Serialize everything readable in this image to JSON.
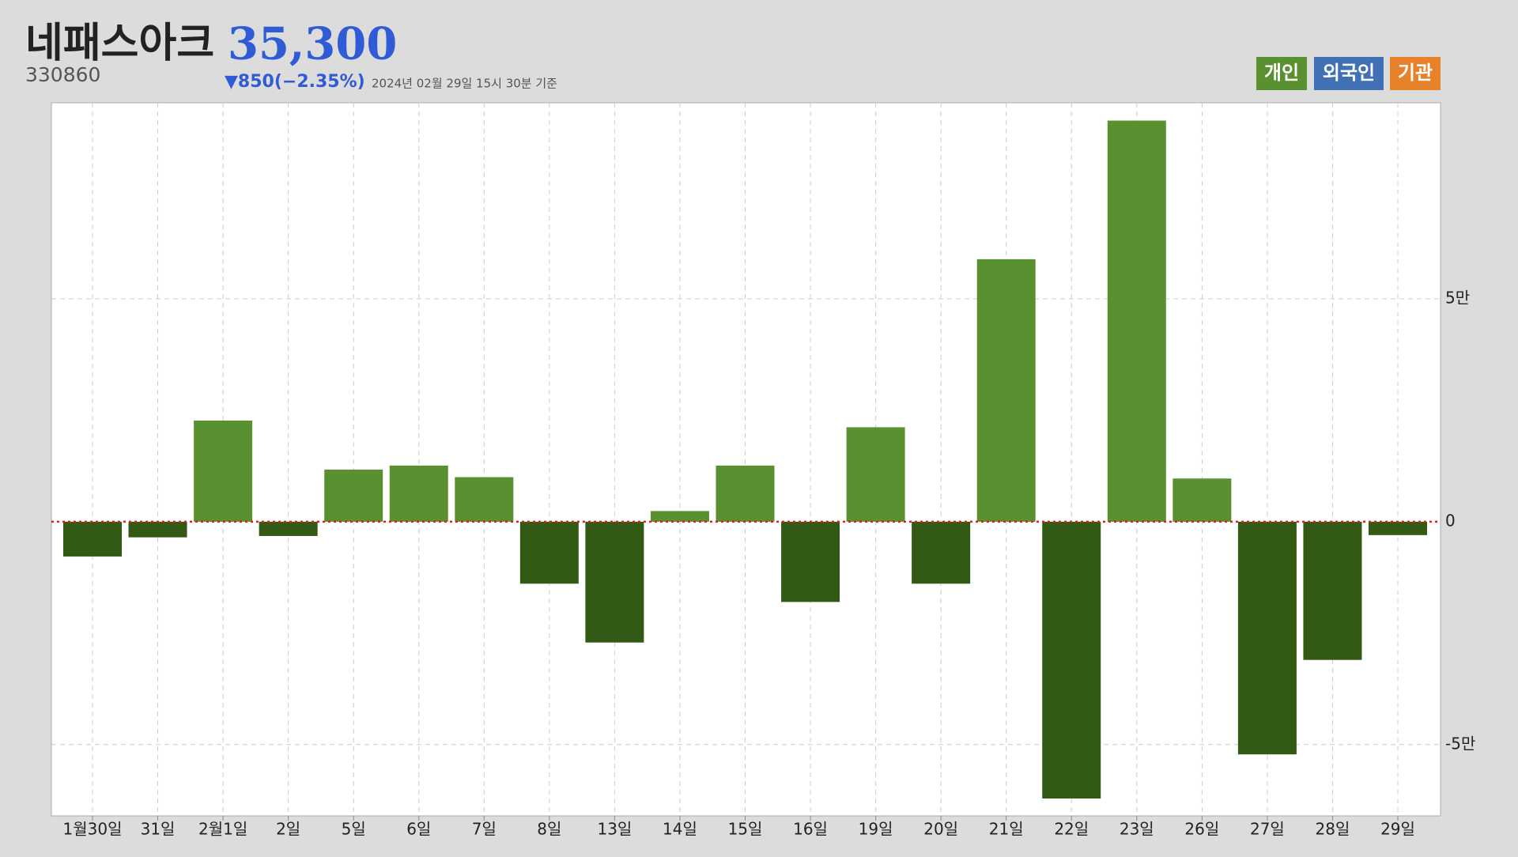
{
  "header": {
    "title": "네패스아크",
    "code": "330860",
    "price": "35,300",
    "change": "▼850(−2.35%)",
    "timestamp": "2024년 02월 29일 15시 30분 기준"
  },
  "legend": [
    {
      "label": "개인",
      "color": "#5a9130"
    },
    {
      "label": "외국인",
      "color": "#4170b4"
    },
    {
      "label": "기관",
      "color": "#e8822a"
    }
  ],
  "chart_data": {
    "type": "bar",
    "categories": [
      "1월30일",
      "31일",
      "2월1일",
      "2일",
      "5일",
      "6일",
      "7일",
      "8일",
      "13일",
      "14일",
      "15일",
      "16일",
      "19일",
      "20일",
      "21일",
      "22일",
      "23일",
      "26일",
      "27일",
      "28일",
      "29일"
    ],
    "values": [
      -7800,
      -3500,
      22700,
      -3200,
      11700,
      12600,
      10000,
      -13900,
      -27100,
      2400,
      12600,
      -18000,
      21200,
      -13900,
      58900,
      -62100,
      90000,
      9700,
      -52200,
      -31000,
      -3000
    ],
    "positive_color": "#5a9130",
    "negative_color": "#335a14",
    "ylim": [
      -66000,
      94000
    ],
    "yticks": [
      {
        "value": -50000,
        "label": "-5만"
      },
      0,
      {
        "value": 50000,
        "label": "5만"
      }
    ],
    "grid": true
  }
}
